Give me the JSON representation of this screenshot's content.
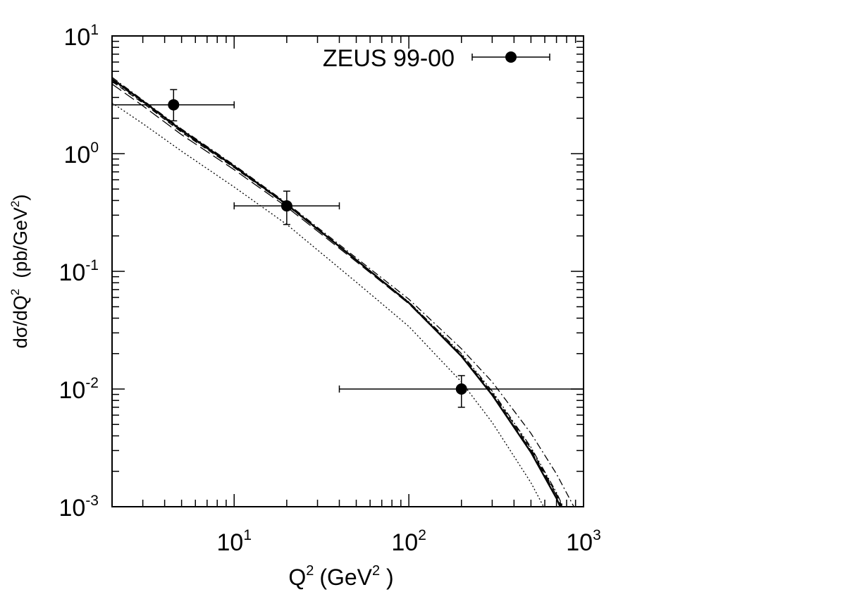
{
  "chart_data": {
    "type": "scatter",
    "scale": {
      "x": "log",
      "y": "log"
    },
    "xlim": [
      2,
      1000
    ],
    "ylim": [
      0.001,
      10
    ],
    "xlabel": {
      "base": "Q",
      "sup1": "2",
      "unit_pre": "(GeV",
      "sup2": "2",
      "unit_post": " )"
    },
    "ylabel": {
      "pre": "dσ/dQ",
      "sup1": "2",
      "mid": "  (pb/GeV",
      "sup2": "2",
      "post": ")"
    },
    "x_ticks": [
      {
        "base": "10",
        "exp": "1",
        "value": 10
      },
      {
        "base": "10",
        "exp": "2",
        "value": 100
      },
      {
        "base": "10",
        "exp": "3",
        "value": 1000
      }
    ],
    "y_ticks": [
      {
        "base": "10",
        "exp": "1",
        "value": 10
      },
      {
        "base": "10",
        "exp": "0",
        "value": 1
      },
      {
        "base": "10",
        "exp": "-1",
        "value": 0.1
      },
      {
        "base": "10",
        "exp": "-2",
        "value": 0.01
      },
      {
        "base": "10",
        "exp": "-3",
        "value": 0.001
      }
    ],
    "legend": {
      "label": "ZEUS 99-00",
      "position": "top-right"
    },
    "series": [
      {
        "kind": "data",
        "label": "ZEUS 99-00",
        "points": [
          {
            "x": 4.5,
            "y": 2.6,
            "x_low": 2,
            "x_high": 10,
            "y_low": 1.9,
            "y_high": 3.5
          },
          {
            "x": 20,
            "y": 0.36,
            "x_low": 10,
            "x_high": 40,
            "y_low": 0.25,
            "y_high": 0.48
          },
          {
            "x": 200,
            "y": 0.01,
            "x_low": 40,
            "x_high": 1000,
            "y_low": 0.007,
            "y_high": 0.013
          }
        ]
      },
      {
        "kind": "curve",
        "style": "solid",
        "points": [
          [
            2,
            4.3
          ],
          [
            3,
            2.8
          ],
          [
            5,
            1.58
          ],
          [
            10,
            0.78
          ],
          [
            20,
            0.37
          ],
          [
            50,
            0.125
          ],
          [
            100,
            0.054
          ],
          [
            200,
            0.019
          ],
          [
            300,
            0.0089
          ],
          [
            500,
            0.0029
          ],
          [
            700,
            0.00118
          ],
          [
            1000,
            0.00035
          ]
        ]
      },
      {
        "kind": "curve",
        "style": "dashed",
        "points": [
          [
            2,
            4.1
          ],
          [
            3,
            2.7
          ],
          [
            5,
            1.52
          ],
          [
            10,
            0.76
          ],
          [
            20,
            0.365
          ],
          [
            50,
            0.124
          ],
          [
            100,
            0.054
          ],
          [
            200,
            0.0195
          ],
          [
            300,
            0.0093
          ],
          [
            500,
            0.0031
          ],
          [
            700,
            0.00128
          ],
          [
            1000,
            0.0004
          ]
        ]
      },
      {
        "kind": "curve",
        "style": "dash-dot",
        "points": [
          [
            2,
            4.45
          ],
          [
            3,
            2.85
          ],
          [
            5,
            1.62
          ],
          [
            10,
            0.8
          ],
          [
            20,
            0.38
          ],
          [
            50,
            0.13
          ],
          [
            100,
            0.058
          ],
          [
            200,
            0.022
          ],
          [
            300,
            0.0115
          ],
          [
            500,
            0.0042
          ],
          [
            700,
            0.0019
          ],
          [
            1000,
            0.0007
          ]
        ]
      },
      {
        "kind": "curve",
        "style": "dash-dot-dot",
        "points": [
          [
            2,
            4.2
          ],
          [
            3,
            2.75
          ],
          [
            5,
            1.55
          ],
          [
            10,
            0.77
          ],
          [
            20,
            0.368
          ],
          [
            50,
            0.126
          ],
          [
            100,
            0.055
          ],
          [
            200,
            0.02
          ],
          [
            300,
            0.0096
          ],
          [
            500,
            0.0032
          ],
          [
            700,
            0.00132
          ],
          [
            1000,
            0.00042
          ]
        ]
      },
      {
        "kind": "curve",
        "style": "long-dash",
        "points": [
          [
            2,
            3.9
          ],
          [
            3,
            2.55
          ],
          [
            5,
            1.45
          ],
          [
            10,
            0.73
          ],
          [
            20,
            0.352
          ],
          [
            50,
            0.121
          ],
          [
            100,
            0.053
          ],
          [
            200,
            0.019
          ],
          [
            300,
            0.009
          ],
          [
            500,
            0.003
          ],
          [
            700,
            0.00125
          ],
          [
            1000,
            0.00038
          ]
        ]
      },
      {
        "kind": "curve",
        "style": "dotted",
        "points": [
          [
            2,
            2.7
          ],
          [
            3,
            1.8
          ],
          [
            5,
            1.05
          ],
          [
            10,
            0.52
          ],
          [
            20,
            0.25
          ],
          [
            50,
            0.081
          ],
          [
            100,
            0.034
          ],
          [
            200,
            0.0115
          ],
          [
            300,
            0.0052
          ],
          [
            500,
            0.0016
          ],
          [
            700,
            0.00062
          ],
          [
            1000,
            0.00018
          ]
        ]
      }
    ]
  }
}
